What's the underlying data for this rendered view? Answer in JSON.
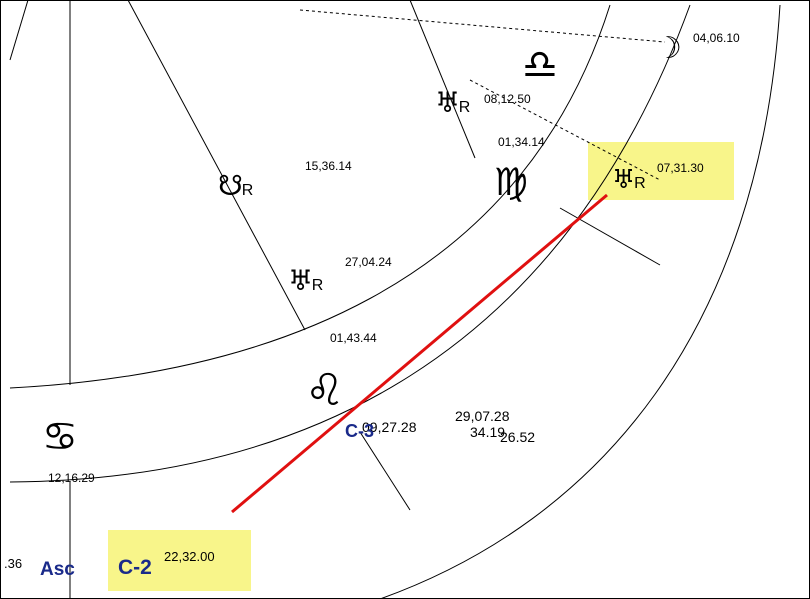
{
  "chart_wheel": {
    "signs": [
      "♎",
      "♍",
      "♌",
      "♋"
    ],
    "planets": [
      {
        "glyph": "☽",
        "position": "04,06.10"
      },
      {
        "glyph": "♅",
        "retro": "R",
        "position": "08,12.50"
      },
      {
        "glyph": "☋",
        "retro": "R",
        "position": "15,36.14"
      },
      {
        "glyph": "♅",
        "retro": "R",
        "position": "27,04.24"
      },
      {
        "glyph": "♅",
        "retro": "R",
        "position": "07,31.30"
      }
    ],
    "cusps": [
      "01,34.14",
      "01,43.44",
      "12,16.29"
    ],
    "cluster": [
      "09,27.28",
      "29,07.28",
      "34.19",
      "26.52"
    ],
    "chart_points": [
      {
        "name": "C-3"
      },
      {
        "name": "C-2",
        "position": "22,32.00"
      }
    ],
    "ascendant": {
      "partial": ".36",
      "label": "Asc"
    }
  }
}
